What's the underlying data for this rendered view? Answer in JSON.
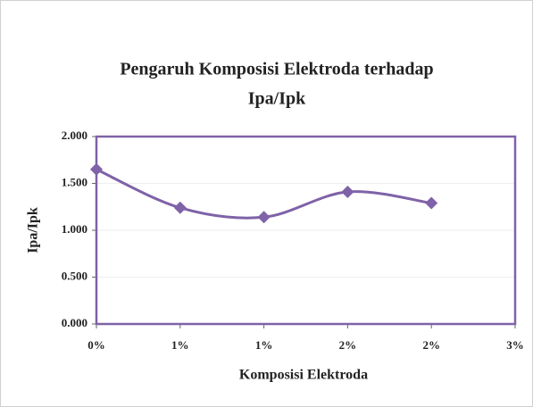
{
  "chart_data": {
    "type": "line",
    "title": [
      "Pengaruh Komposisi Elektroda  terhadap",
      "Ipa/Ipk"
    ],
    "x_label": "Komposisi Elektroda",
    "y_label": "Ipa/Ipk",
    "categories": [
      "0%",
      "1%",
      "1%",
      "2%",
      "2%",
      "3%"
    ],
    "series": [
      {
        "name": "Ipa/Ipk",
        "color": "#7f62a8",
        "values": [
          1.65,
          1.24,
          1.14,
          1.41,
          1.29,
          null
        ]
      }
    ],
    "ylim": [
      0,
      2
    ],
    "yticks": [
      {
        "value": 0,
        "label": "0.000"
      },
      {
        "value": 0.5,
        "label": "0.500"
      },
      {
        "value": 1,
        "label": "1.000"
      },
      {
        "value": 1.5,
        "label": "1.500"
      },
      {
        "value": 2,
        "label": "2.000"
      }
    ],
    "grid": true,
    "smooth": true
  }
}
